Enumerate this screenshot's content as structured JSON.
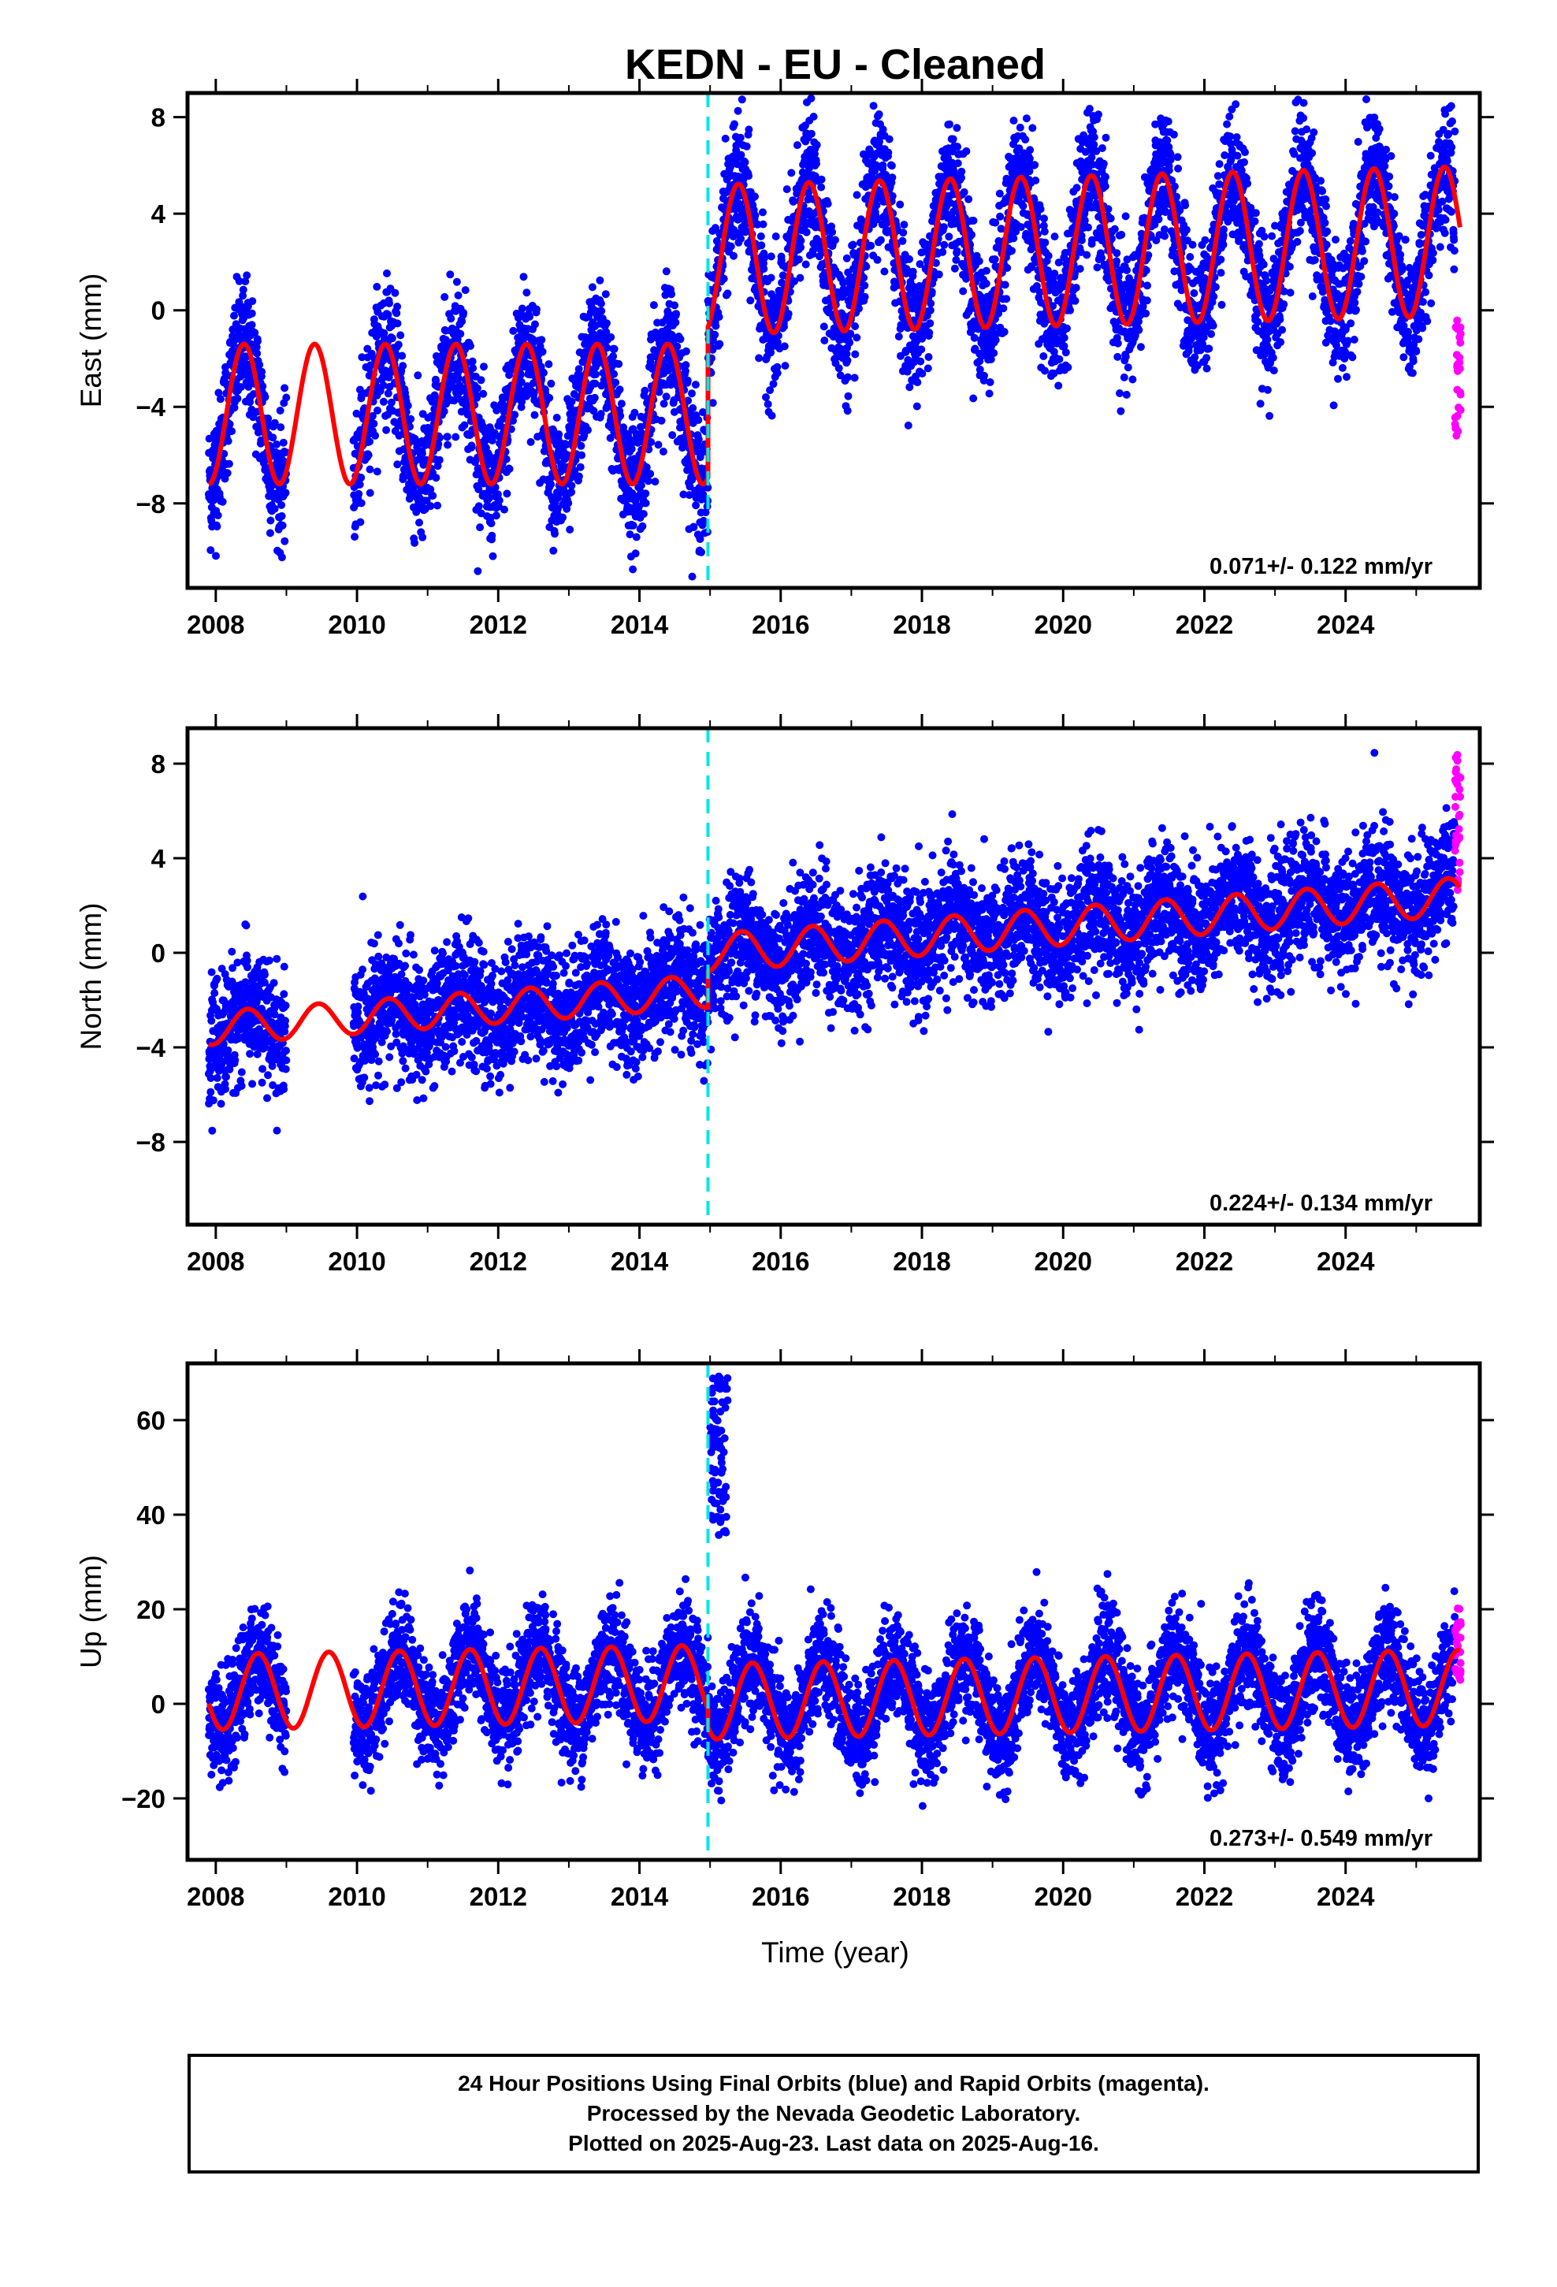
{
  "title": "KEDN  - EU - Cleaned",
  "xlabel": "Time (year)",
  "caption": [
    "24 Hour Positions Using Final Orbits (blue) and Rapid Orbits (magenta).",
    "Processed by the Nevada Geodetic Laboratory.",
    "Plotted on 2025-Aug-23. Last data on 2025-Aug-16."
  ],
  "colors": {
    "final_orbits": "#0000ff",
    "rapid_orbits": "#ff00ff",
    "model_fit": "#ff0000",
    "offset_marker": "#00e5e5"
  },
  "chart_data": [
    {
      "type": "scatter",
      "ylabel": "East (mm)",
      "rate_annotation": "0.071+/- 0.122 mm/yr",
      "xlim": [
        2007.6,
        2025.9
      ],
      "ylim": [
        -11.5,
        9
      ],
      "xticks": [
        2008,
        2010,
        2012,
        2014,
        2016,
        2018,
        2020,
        2022,
        2024
      ],
      "yticks": [
        8,
        4,
        0,
        -4,
        -8
      ],
      "ytick_labels": [
        "8",
        "4",
        "0",
        "−4",
        "−8"
      ],
      "offset_epoch": 2014.97,
      "final_orbit_segments": [
        [
          2007.9,
          2009.0
        ],
        [
          2009.95,
          2025.55
        ]
      ],
      "rapid_orbit_segment": [
        2025.55,
        2025.63
      ],
      "rapid_orbit_range": [
        -5.2,
        -0.4
      ],
      "model": {
        "segments": [
          {
            "range": [
              2007.9,
              2014.97
            ],
            "level": -4.3,
            "trend": 0.0,
            "amplitude": 2.9
          },
          {
            "range": [
              2014.97,
              2025.62
            ],
            "level": 2.1,
            "trend": 0.071,
            "amplitude": 3.1
          }
        ],
        "peak_phase": 0.4
      },
      "scatter_sd": 1.35
    },
    {
      "type": "scatter",
      "ylabel": "North (mm)",
      "rate_annotation": "0.224+/- 0.134 mm/yr",
      "xlim": [
        2007.6,
        2025.9
      ],
      "ylim": [
        -11.5,
        9.5
      ],
      "xticks": [
        2008,
        2010,
        2012,
        2014,
        2016,
        2018,
        2020,
        2022,
        2024
      ],
      "yticks": [
        8,
        4,
        0,
        -4,
        -8
      ],
      "ytick_labels": [
        "8",
        "4",
        "0",
        "−4",
        "−8"
      ],
      "offset_epoch": 2014.97,
      "final_orbit_segments": [
        [
          2007.9,
          2009.0
        ],
        [
          2009.95,
          2025.55
        ]
      ],
      "rapid_orbit_segment": [
        2025.55,
        2025.63
      ],
      "rapid_orbit_range": [
        2.0,
        8.5
      ],
      "model": {
        "segments": [
          {
            "range": [
              2007.9,
              2014.97
            ],
            "level": -3.2,
            "trend": 0.224,
            "amplitude": 0.7
          },
          {
            "range": [
              2014.97,
              2025.62
            ],
            "level": 0.0,
            "trend": 0.224,
            "amplitude": 0.8
          }
        ],
        "peak_phase": 0.45
      },
      "scatter_sd": 1.3
    },
    {
      "type": "scatter",
      "ylabel": "Up (mm)",
      "rate_annotation": "0.273+/- 0.549 mm/yr",
      "xlim": [
        2007.6,
        2025.9
      ],
      "ylim": [
        -33,
        72
      ],
      "xticks": [
        2008,
        2010,
        2012,
        2014,
        2016,
        2018,
        2020,
        2022,
        2024
      ],
      "yticks": [
        60,
        40,
        20,
        0,
        -20
      ],
      "ytick_labels": [
        "60",
        "40",
        "20",
        "0",
        "−20"
      ],
      "offset_epoch": 2014.97,
      "final_orbit_segments": [
        [
          2007.9,
          2009.0
        ],
        [
          2009.95,
          2025.55
        ]
      ],
      "rapid_orbit_segment": [
        2025.55,
        2025.63
      ],
      "rapid_orbit_range": [
        5,
        22
      ],
      "outlier_cluster": {
        "x_range": [
          2015.0,
          2015.25
        ],
        "y_range": [
          35,
          70
        ]
      },
      "model": {
        "segments": [
          {
            "range": [
              2007.9,
              2014.97
            ],
            "level": 2.5,
            "trend": 0.273,
            "amplitude": 8.0
          },
          {
            "range": [
              2014.97,
              2025.62
            ],
            "level": 0.5,
            "trend": 0.273,
            "amplitude": 8.0
          }
        ],
        "peak_phase": 0.6
      },
      "scatter_sd": 5.5
    }
  ]
}
